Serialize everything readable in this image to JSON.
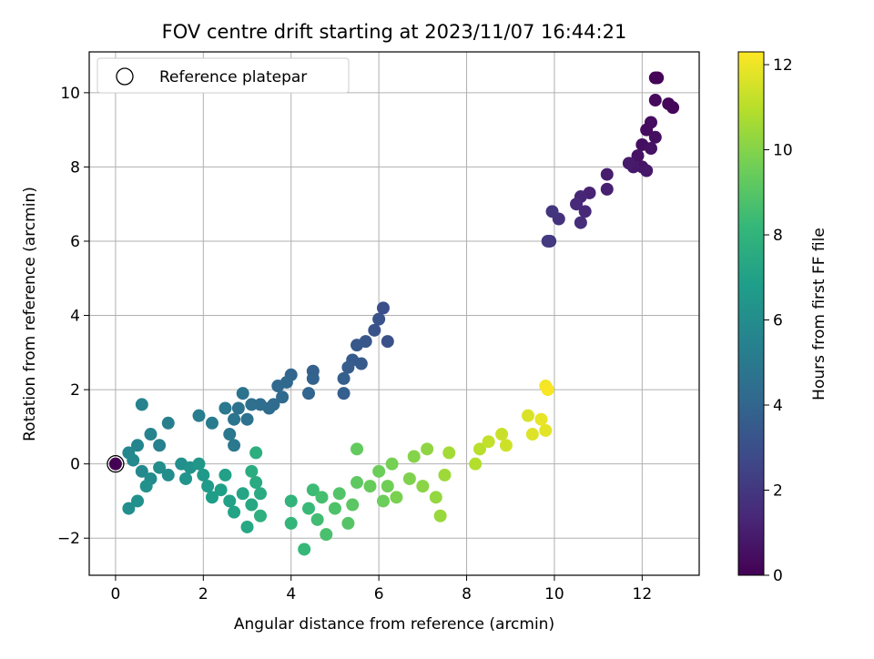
{
  "chart_data": {
    "type": "scatter",
    "title": "FOV centre drift starting at 2023/11/07 16:44:21",
    "xlabel": "Angular distance from reference (arcmin)",
    "ylabel": "Rotation from reference (arcmin)",
    "xlim": [
      -0.6,
      13.3
    ],
    "ylim": [
      -3.0,
      11.1
    ],
    "xticks": [
      0,
      2,
      4,
      6,
      8,
      10,
      12
    ],
    "yticks": [
      -2,
      0,
      2,
      4,
      6,
      8,
      10
    ],
    "xtick_labels": [
      "0",
      "2",
      "4",
      "6",
      "8",
      "10",
      "12"
    ],
    "ytick_labels": [
      "−2",
      "0",
      "2",
      "4",
      "6",
      "8",
      "10"
    ],
    "grid": true,
    "legend": {
      "label": "Reference platepar",
      "placement": "top-left",
      "marker": "open-circle"
    },
    "reference_point": {
      "x": 0,
      "y": 0
    },
    "colorbar": {
      "label": "Hours from first FF file",
      "range": [
        0,
        12.3
      ],
      "ticks": [
        0,
        2,
        4,
        6,
        8,
        10,
        12
      ],
      "tick_labels": [
        "0",
        "2",
        "4",
        "6",
        "8",
        "10",
        "12"
      ],
      "colormap": "viridis",
      "colors": [
        "#440154",
        "#482878",
        "#3e4989",
        "#31688e",
        "#26828e",
        "#1f9e89",
        "#35b779",
        "#6ece58",
        "#b5de2b",
        "#fde725"
      ]
    },
    "points": [
      [
        12.3,
        10.4,
        0.1
      ],
      [
        12.35,
        10.4,
        0.1
      ],
      [
        12.7,
        9.6,
        0.2
      ],
      [
        12.6,
        9.7,
        0.2
      ],
      [
        12.3,
        9.8,
        0.3
      ],
      [
        12.2,
        9.2,
        0.4
      ],
      [
        12.1,
        9.0,
        0.4
      ],
      [
        12.3,
        8.8,
        0.5
      ],
      [
        12.0,
        8.6,
        0.5
      ],
      [
        11.9,
        8.3,
        0.6
      ],
      [
        12.2,
        8.5,
        0.6
      ],
      [
        12.0,
        8.0,
        0.7
      ],
      [
        11.8,
        8.0,
        0.8
      ],
      [
        12.1,
        7.9,
        0.8
      ],
      [
        11.7,
        8.1,
        0.9
      ],
      [
        11.2,
        7.8,
        1.0
      ],
      [
        11.2,
        7.4,
        1.1
      ],
      [
        10.8,
        7.3,
        1.2
      ],
      [
        10.6,
        7.2,
        1.3
      ],
      [
        10.7,
        6.8,
        1.4
      ],
      [
        10.5,
        7.0,
        1.5
      ],
      [
        10.6,
        6.5,
        1.6
      ],
      [
        10.1,
        6.6,
        1.8
      ],
      [
        9.95,
        6.8,
        1.9
      ],
      [
        9.9,
        6.0,
        2.0
      ],
      [
        9.85,
        6.0,
        2.1
      ],
      [
        6.1,
        4.2,
        3.0
      ],
      [
        6.2,
        3.3,
        3.1
      ],
      [
        5.9,
        3.6,
        3.2
      ],
      [
        6.0,
        3.9,
        3.2
      ],
      [
        5.7,
        3.3,
        3.3
      ],
      [
        5.5,
        3.2,
        3.4
      ],
      [
        5.6,
        2.7,
        3.5
      ],
      [
        5.4,
        2.8,
        3.5
      ],
      [
        5.3,
        2.6,
        3.6
      ],
      [
        5.2,
        2.3,
        3.7
      ],
      [
        5.2,
        1.9,
        3.7
      ],
      [
        4.5,
        2.5,
        3.8
      ],
      [
        4.5,
        2.3,
        3.9
      ],
      [
        4.4,
        1.9,
        4.0
      ],
      [
        4.0,
        2.4,
        4.0
      ],
      [
        3.9,
        2.2,
        4.1
      ],
      [
        3.7,
        2.1,
        4.1
      ],
      [
        3.8,
        1.8,
        4.2
      ],
      [
        3.6,
        1.6,
        4.3
      ],
      [
        3.5,
        1.5,
        4.3
      ],
      [
        3.3,
        1.6,
        4.4
      ],
      [
        3.1,
        1.6,
        4.5
      ],
      [
        3.0,
        1.2,
        4.6
      ],
      [
        2.8,
        1.5,
        4.6
      ],
      [
        2.9,
        1.9,
        4.7
      ],
      [
        2.7,
        1.2,
        4.8
      ],
      [
        2.6,
        0.8,
        4.9
      ],
      [
        2.7,
        0.5,
        5.0
      ],
      [
        2.5,
        1.5,
        5.0
      ],
      [
        2.2,
        1.1,
        5.1
      ],
      [
        1.9,
        1.3,
        5.2
      ],
      [
        1.2,
        1.1,
        5.3
      ],
      [
        1.0,
        0.5,
        5.4
      ],
      [
        0.8,
        0.8,
        5.5
      ],
      [
        0.6,
        1.6,
        5.5
      ],
      [
        0.5,
        0.5,
        5.6
      ],
      [
        0.3,
        0.3,
        5.7
      ],
      [
        0.4,
        0.1,
        5.8
      ],
      [
        0.6,
        -0.2,
        5.8
      ],
      [
        0.8,
        -0.4,
        5.9
      ],
      [
        1.0,
        -0.1,
        6.0
      ],
      [
        1.2,
        -0.3,
        6.0
      ],
      [
        1.5,
        0.0,
        6.1
      ],
      [
        0.3,
        -1.2,
        6.1
      ],
      [
        0.5,
        -1.0,
        6.2
      ],
      [
        0.7,
        -0.6,
        6.2
      ],
      [
        1.7,
        -0.1,
        6.3
      ],
      [
        1.6,
        -0.4,
        6.4
      ],
      [
        1.9,
        0.0,
        6.5
      ],
      [
        2.0,
        -0.3,
        6.6
      ],
      [
        2.1,
        -0.6,
        6.7
      ],
      [
        2.2,
        -0.9,
        6.8
      ],
      [
        2.4,
        -0.7,
        6.9
      ],
      [
        2.5,
        -0.3,
        7.0
      ],
      [
        2.6,
        -1.0,
        7.0
      ],
      [
        2.7,
        -1.3,
        7.1
      ],
      [
        2.9,
        -0.8,
        7.2
      ],
      [
        3.0,
        -1.7,
        7.3
      ],
      [
        3.1,
        -1.1,
        7.4
      ],
      [
        3.2,
        -0.5,
        7.5
      ],
      [
        3.3,
        -0.8,
        7.5
      ],
      [
        3.1,
        -0.2,
        7.6
      ],
      [
        3.2,
        0.3,
        7.7
      ],
      [
        3.3,
        -1.4,
        7.8
      ],
      [
        4.0,
        -1.0,
        8.0
      ],
      [
        4.0,
        -1.6,
        8.1
      ],
      [
        4.3,
        -2.3,
        8.2
      ],
      [
        4.4,
        -1.2,
        8.3
      ],
      [
        4.5,
        -0.7,
        8.4
      ],
      [
        4.6,
        -1.5,
        8.5
      ],
      [
        4.7,
        -0.9,
        8.6
      ],
      [
        4.8,
        -1.9,
        8.7
      ],
      [
        5.0,
        -1.2,
        8.8
      ],
      [
        5.1,
        -0.8,
        8.9
      ],
      [
        5.3,
        -1.6,
        9.0
      ],
      [
        5.4,
        -1.1,
        9.1
      ],
      [
        5.5,
        -0.5,
        9.2
      ],
      [
        5.5,
        0.4,
        9.3
      ],
      [
        5.8,
        -0.6,
        9.4
      ],
      [
        6.0,
        -0.2,
        9.5
      ],
      [
        6.1,
        -1.0,
        9.5
      ],
      [
        6.2,
        -0.6,
        9.6
      ],
      [
        6.3,
        0.0,
        9.7
      ],
      [
        6.4,
        -0.9,
        9.8
      ],
      [
        6.7,
        -0.4,
        9.9
      ],
      [
        6.8,
        0.2,
        10.0
      ],
      [
        7.0,
        -0.6,
        10.1
      ],
      [
        7.1,
        0.4,
        10.2
      ],
      [
        7.3,
        -0.9,
        10.3
      ],
      [
        7.4,
        -1.4,
        10.4
      ],
      [
        7.5,
        -0.3,
        10.5
      ],
      [
        7.6,
        0.3,
        10.6
      ],
      [
        8.2,
        0.0,
        10.9
      ],
      [
        8.3,
        0.4,
        11.0
      ],
      [
        8.5,
        0.6,
        11.2
      ],
      [
        8.8,
        0.8,
        11.3
      ],
      [
        8.9,
        0.5,
        11.4
      ],
      [
        9.4,
        1.3,
        11.6
      ],
      [
        9.5,
        0.8,
        11.7
      ],
      [
        9.8,
        0.9,
        11.8
      ],
      [
        9.7,
        1.2,
        11.9
      ],
      [
        9.8,
        2.1,
        12.1
      ],
      [
        9.85,
        2.0,
        12.2
      ],
      [
        0.0,
        0.0,
        0.0
      ]
    ]
  }
}
